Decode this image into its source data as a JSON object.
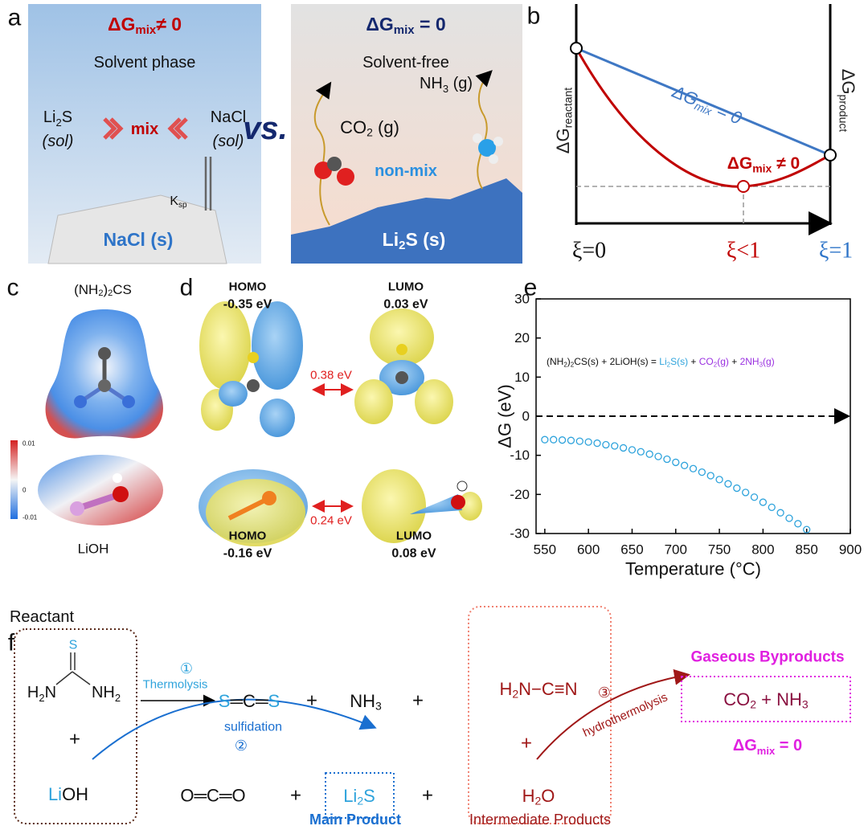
{
  "panel_labels": [
    "a",
    "b",
    "c",
    "d",
    "e",
    "f"
  ],
  "panel_a": {
    "left_header": [
      "ΔG",
      "mix",
      "≠ 0"
    ],
    "left_phase": "Solvent phase",
    "li2s": [
      "Li",
      "2",
      "S"
    ],
    "li2s_state": "(sol)",
    "nacl": "NaCl",
    "nacl_state": "(sol)",
    "mix": "mix",
    "ksp": [
      "K",
      "sp"
    ],
    "left_solid": "NaCl (s)",
    "vs": "vs.",
    "right_header": [
      "ΔG",
      "mix",
      " = 0"
    ],
    "right_phase": "Solvent-free",
    "co2": [
      "CO",
      "2",
      " (g)"
    ],
    "nh3": [
      "NH",
      "3",
      " (g)"
    ],
    "non_mix": "non-mix",
    "right_solid": [
      "Li",
      "2",
      "S (s)"
    ]
  },
  "panel_b": {
    "reactant": [
      "ΔG",
      "reactant"
    ],
    "product": [
      "ΔG",
      "product"
    ],
    "mix_zero": [
      "ΔG",
      "mix",
      " = 0"
    ],
    "mix_nonzero": [
      "ΔG",
      "mix",
      " ≠ 0"
    ],
    "xi_start": "ξ=0",
    "xi_mid": "ξ<1",
    "xi_end": "ξ=1"
  },
  "panel_c": {
    "top_molecule": [
      "(NH",
      "2",
      ")",
      "2",
      "CS"
    ],
    "bottom_molecule": "LiOH",
    "scale_labels": [
      "0.01",
      "0",
      "-0.01"
    ]
  },
  "panel_d": {
    "top_homo": [
      "HOMO",
      "-0.35 eV"
    ],
    "top_lumo": [
      "LUMO",
      "0.03 eV"
    ],
    "top_gap": "0.38 eV",
    "bottom_homo": [
      "HOMO",
      "-0.16 eV"
    ],
    "bottom_lumo": [
      "LUMO",
      "0.08 eV"
    ],
    "bottom_gap": "0.24 eV"
  },
  "chart_data": {
    "type": "scatter",
    "xlabel": "Temperature (°C)",
    "ylabel": "ΔG (eV)",
    "annotation": [
      "(NH",
      "2",
      ")",
      "2",
      "CS(s) + 2LiOH(s) = ",
      "Li",
      "2",
      "S(s)",
      " + ",
      "CO",
      "2",
      "(g)",
      " + ",
      "2NH",
      "3",
      "(g)"
    ],
    "x": [
      550,
      560,
      570,
      580,
      590,
      600,
      610,
      620,
      630,
      640,
      650,
      660,
      670,
      680,
      690,
      700,
      710,
      720,
      730,
      740,
      750,
      760,
      770,
      780,
      790,
      800,
      810,
      820,
      830,
      840,
      850
    ],
    "series": [
      {
        "color": "#2ea3dc",
        "values": [
          -6.0,
          -6.0,
          -6.1,
          -6.2,
          -6.4,
          -6.6,
          -6.9,
          -7.3,
          -7.6,
          -8.1,
          -8.6,
          -9.1,
          -9.7,
          -10.3,
          -11.0,
          -11.8,
          -12.6,
          -13.4,
          -14.3,
          -15.2,
          -16.2,
          -17.3,
          -18.4,
          -19.5,
          -20.7,
          -22.0,
          -23.3,
          -24.7,
          -26.1,
          -27.5,
          -29.0
        ]
      }
    ],
    "xlim": [
      540,
      900
    ],
    "xticks": [
      550,
      600,
      650,
      700,
      750,
      800,
      850,
      900
    ],
    "ylim": [
      -30,
      30
    ],
    "yticks": [
      -30,
      -20,
      -10,
      0,
      10,
      20,
      30
    ],
    "reference_line": 0
  },
  "panel_f": {
    "reactant_label": "Reactant",
    "thiourea": {
      "s": "S",
      "left": [
        "H",
        "2",
        "N"
      ],
      "right": [
        "NH",
        "2"
      ]
    },
    "plus_reactant": "+",
    "lioh": [
      "Li",
      "OH"
    ],
    "step1": {
      "number": "①",
      "name": "Thermolysis"
    },
    "cs2": [
      "S",
      "═C═",
      "S"
    ],
    "plus_1": "+",
    "nh3": [
      "NH",
      "3"
    ],
    "plus_2": "+",
    "step2": {
      "name": "sulfidation",
      "number": "②"
    },
    "co2": "O═C═O",
    "plus_3": "+",
    "li2s": [
      "Li",
      "2",
      "S"
    ],
    "plus_4": "+",
    "cyanamide": [
      "H",
      "2",
      "N−C≡N"
    ],
    "plus_5": "+",
    "water": [
      "H",
      "2",
      "O"
    ],
    "step3": {
      "number": "③",
      "name": "hydrothermolysis"
    },
    "gas_title": "Gaseous Byproducts",
    "gases": [
      "CO",
      "2",
      " + ",
      "NH",
      "3"
    ],
    "gas_dg": [
      "ΔG",
      "mix",
      " = 0"
    ],
    "main_product": "Main Product",
    "intermediate": "Intermediate Products"
  }
}
